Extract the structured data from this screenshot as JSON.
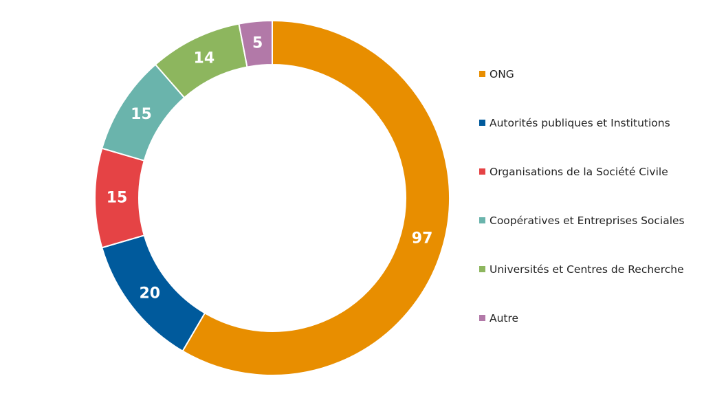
{
  "chart_data": {
    "type": "pie",
    "donut": true,
    "title": "",
    "categories": [
      "ONG",
      "Autorités publiques et Institutions",
      "Organisations de la Société Civile",
      "Coopératives et Entreprises Sociales",
      "Universités et Centres de Recherche",
      "Autre"
    ],
    "values": [
      97,
      20,
      15,
      15,
      14,
      5
    ],
    "colors": [
      "#E88E00",
      "#005A9C",
      "#E54345",
      "#6AB4AC",
      "#8DB65E",
      "#B279A8"
    ],
    "data_labels": [
      "97",
      "20",
      "15",
      "15",
      "14",
      "5"
    ],
    "legend_position": "right",
    "label_color": "#FFFFFF"
  }
}
